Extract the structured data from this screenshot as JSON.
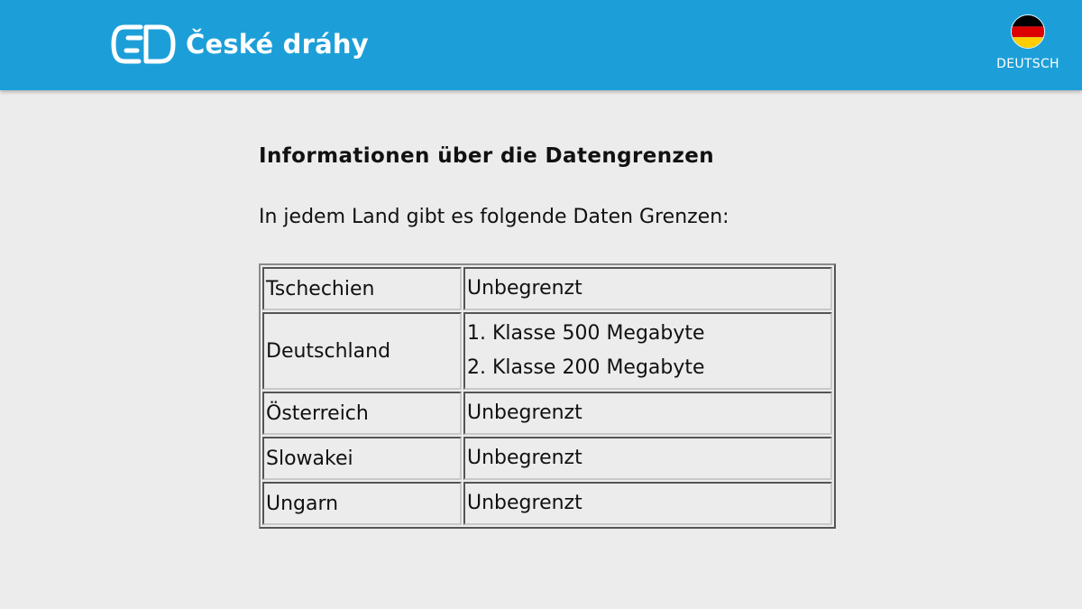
{
  "header": {
    "brand_name": "České dráhy",
    "logo_icon": "cd-logo-icon",
    "language": {
      "label": "DEUTSCH",
      "flag_icon": "germany-flag-icon"
    }
  },
  "main": {
    "title": "Informationen über die Datengrenzen",
    "intro": "In jedem Land gibt es folgende Daten Grenzen:",
    "rows": [
      {
        "country": "Tschechien",
        "limits": [
          "Unbegrenzt"
        ]
      },
      {
        "country": "Deutschland",
        "limits": [
          "1. Klasse 500 Megabyte",
          "2. Klasse 200 Megabyte"
        ]
      },
      {
        "country": "Österreich",
        "limits": [
          "Unbegrenzt"
        ]
      },
      {
        "country": "Slowakei",
        "limits": [
          "Unbegrenzt"
        ]
      },
      {
        "country": "Ungarn",
        "limits": [
          "Unbegrenzt"
        ]
      }
    ]
  },
  "colors": {
    "header_bg": "#1c9fd8",
    "page_bg": "#ececec",
    "text": "#111111"
  }
}
